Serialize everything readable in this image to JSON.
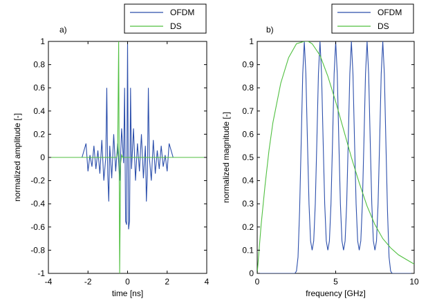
{
  "chart_data": [
    {
      "type": "line",
      "panel_label": "a)",
      "xlabel": "time [ns]",
      "ylabel": "normalized amplitude [-]",
      "xlim": [
        -4,
        4
      ],
      "ylim": [
        -1,
        1
      ],
      "xticks": [
        "-4",
        "-2",
        "0",
        "2",
        "4"
      ],
      "yticks": [
        "-1",
        "-0.8",
        "-0.6",
        "-0.4",
        "-0.2",
        "0",
        "0.2",
        "0.4",
        "0.6",
        "0.8",
        "1"
      ],
      "legend": {
        "position": "top-right",
        "entries": [
          "OFDM",
          "DS"
        ]
      },
      "series": [
        {
          "name": "OFDM",
          "color": "#2b4eab",
          "x": [
            -4.0,
            -2.3,
            -2.1,
            -2.0,
            -1.9,
            -1.8,
            -1.7,
            -1.6,
            -1.5,
            -1.4,
            -1.3,
            -1.2,
            -1.1,
            -1.05,
            -1.0,
            -0.95,
            -0.9,
            -0.8,
            -0.7,
            -0.6,
            -0.5,
            -0.4,
            -0.3,
            -0.2,
            -0.15,
            -0.1,
            -0.05,
            0.0,
            0.05,
            0.1,
            0.15,
            0.2,
            0.3,
            0.4,
            0.5,
            0.6,
            0.7,
            0.8,
            0.9,
            0.95,
            1.0,
            1.05,
            1.1,
            1.2,
            1.3,
            1.4,
            1.5,
            1.6,
            1.7,
            1.8,
            1.9,
            2.0,
            2.1,
            2.3,
            4.0
          ],
          "y": [
            0.0,
            0.0,
            0.12,
            -0.12,
            0.02,
            -0.08,
            0.1,
            -0.1,
            0.06,
            -0.14,
            0.15,
            -0.2,
            0.0,
            0.6,
            -0.15,
            -0.38,
            0.1,
            -0.18,
            0.2,
            -0.12,
            0.12,
            -0.2,
            0.25,
            -0.05,
            0.6,
            -0.55,
            -0.58,
            1.0,
            -0.62,
            -0.55,
            0.6,
            -0.1,
            0.25,
            -0.2,
            0.12,
            -0.12,
            0.2,
            -0.18,
            0.1,
            -0.38,
            -0.15,
            0.6,
            0.0,
            -0.2,
            0.15,
            -0.14,
            0.06,
            -0.1,
            0.1,
            -0.08,
            0.02,
            -0.12,
            0.12,
            0.0,
            0.0
          ]
        },
        {
          "name": "DS",
          "color": "#4fbf3f",
          "x": [
            -4.0,
            -0.55,
            -0.5,
            -0.45,
            -0.4,
            -0.35,
            -0.3,
            -0.25,
            4.0
          ],
          "y": [
            0.0,
            0.0,
            0.05,
            1.0,
            -1.0,
            -0.05,
            0.02,
            0.0,
            0.0
          ]
        }
      ]
    },
    {
      "type": "line",
      "panel_label": "b)",
      "xlabel": "frequency [GHz]",
      "ylabel": "normalized magnitude [-]",
      "xlim": [
        0,
        10
      ],
      "ylim": [
        0,
        1
      ],
      "xticks": [
        "0",
        "5",
        "10"
      ],
      "yticks": [
        "0",
        "0.1",
        "0.2",
        "0.3",
        "0.4",
        "0.5",
        "0.6",
        "0.7",
        "0.8",
        "0.9",
        "1"
      ],
      "legend": {
        "position": "top-right",
        "entries": [
          "OFDM",
          "DS"
        ]
      },
      "series": [
        {
          "name": "OFDM",
          "color": "#2b4eab",
          "peaks_ghz": [
            3.0,
            4.0,
            5.0,
            6.0,
            7.0,
            8.0
          ],
          "x": [
            0,
            2.4,
            2.5,
            2.6,
            2.7,
            2.8,
            2.9,
            3.0,
            3.1,
            3.2,
            3.3,
            3.4,
            3.5,
            3.6,
            3.7,
            3.8,
            3.9,
            4.0,
            4.1,
            4.2,
            4.3,
            4.4,
            4.5,
            4.6,
            4.7,
            4.8,
            4.9,
            5.0,
            5.1,
            5.2,
            5.3,
            5.4,
            5.5,
            5.6,
            5.7,
            5.8,
            5.9,
            6.0,
            6.1,
            6.2,
            6.3,
            6.4,
            6.5,
            6.6,
            6.7,
            6.8,
            6.9,
            7.0,
            7.1,
            7.2,
            7.3,
            7.4,
            7.5,
            7.6,
            7.7,
            7.8,
            7.9,
            8.0,
            8.1,
            8.2,
            8.3,
            8.4,
            8.5,
            8.6,
            10
          ],
          "y": [
            0,
            0,
            0.01,
            0.07,
            0.27,
            0.56,
            0.86,
            1.0,
            0.86,
            0.57,
            0.3,
            0.14,
            0.1,
            0.14,
            0.3,
            0.57,
            0.86,
            1.0,
            0.86,
            0.57,
            0.3,
            0.14,
            0.1,
            0.14,
            0.3,
            0.57,
            0.86,
            1.0,
            0.86,
            0.57,
            0.3,
            0.14,
            0.1,
            0.14,
            0.3,
            0.57,
            0.86,
            1.0,
            0.86,
            0.57,
            0.3,
            0.14,
            0.1,
            0.14,
            0.3,
            0.57,
            0.86,
            1.0,
            0.86,
            0.57,
            0.3,
            0.14,
            0.1,
            0.14,
            0.3,
            0.57,
            0.86,
            1.0,
            0.86,
            0.56,
            0.27,
            0.07,
            0.01,
            0,
            0
          ]
        },
        {
          "name": "DS",
          "color": "#4fbf3f",
          "x": [
            0,
            0.25,
            0.5,
            0.75,
            1.0,
            1.5,
            2.0,
            2.5,
            3.0,
            3.25,
            3.5,
            4.0,
            4.5,
            5.0,
            5.5,
            6.0,
            6.5,
            7.0,
            7.5,
            8.0,
            8.5,
            9.0,
            9.5,
            10.0
          ],
          "y": [
            0.0,
            0.21,
            0.38,
            0.53,
            0.65,
            0.82,
            0.93,
            0.99,
            1.0,
            1.0,
            0.99,
            0.94,
            0.85,
            0.74,
            0.62,
            0.5,
            0.39,
            0.29,
            0.21,
            0.15,
            0.11,
            0.08,
            0.06,
            0.04
          ]
        }
      ]
    }
  ]
}
